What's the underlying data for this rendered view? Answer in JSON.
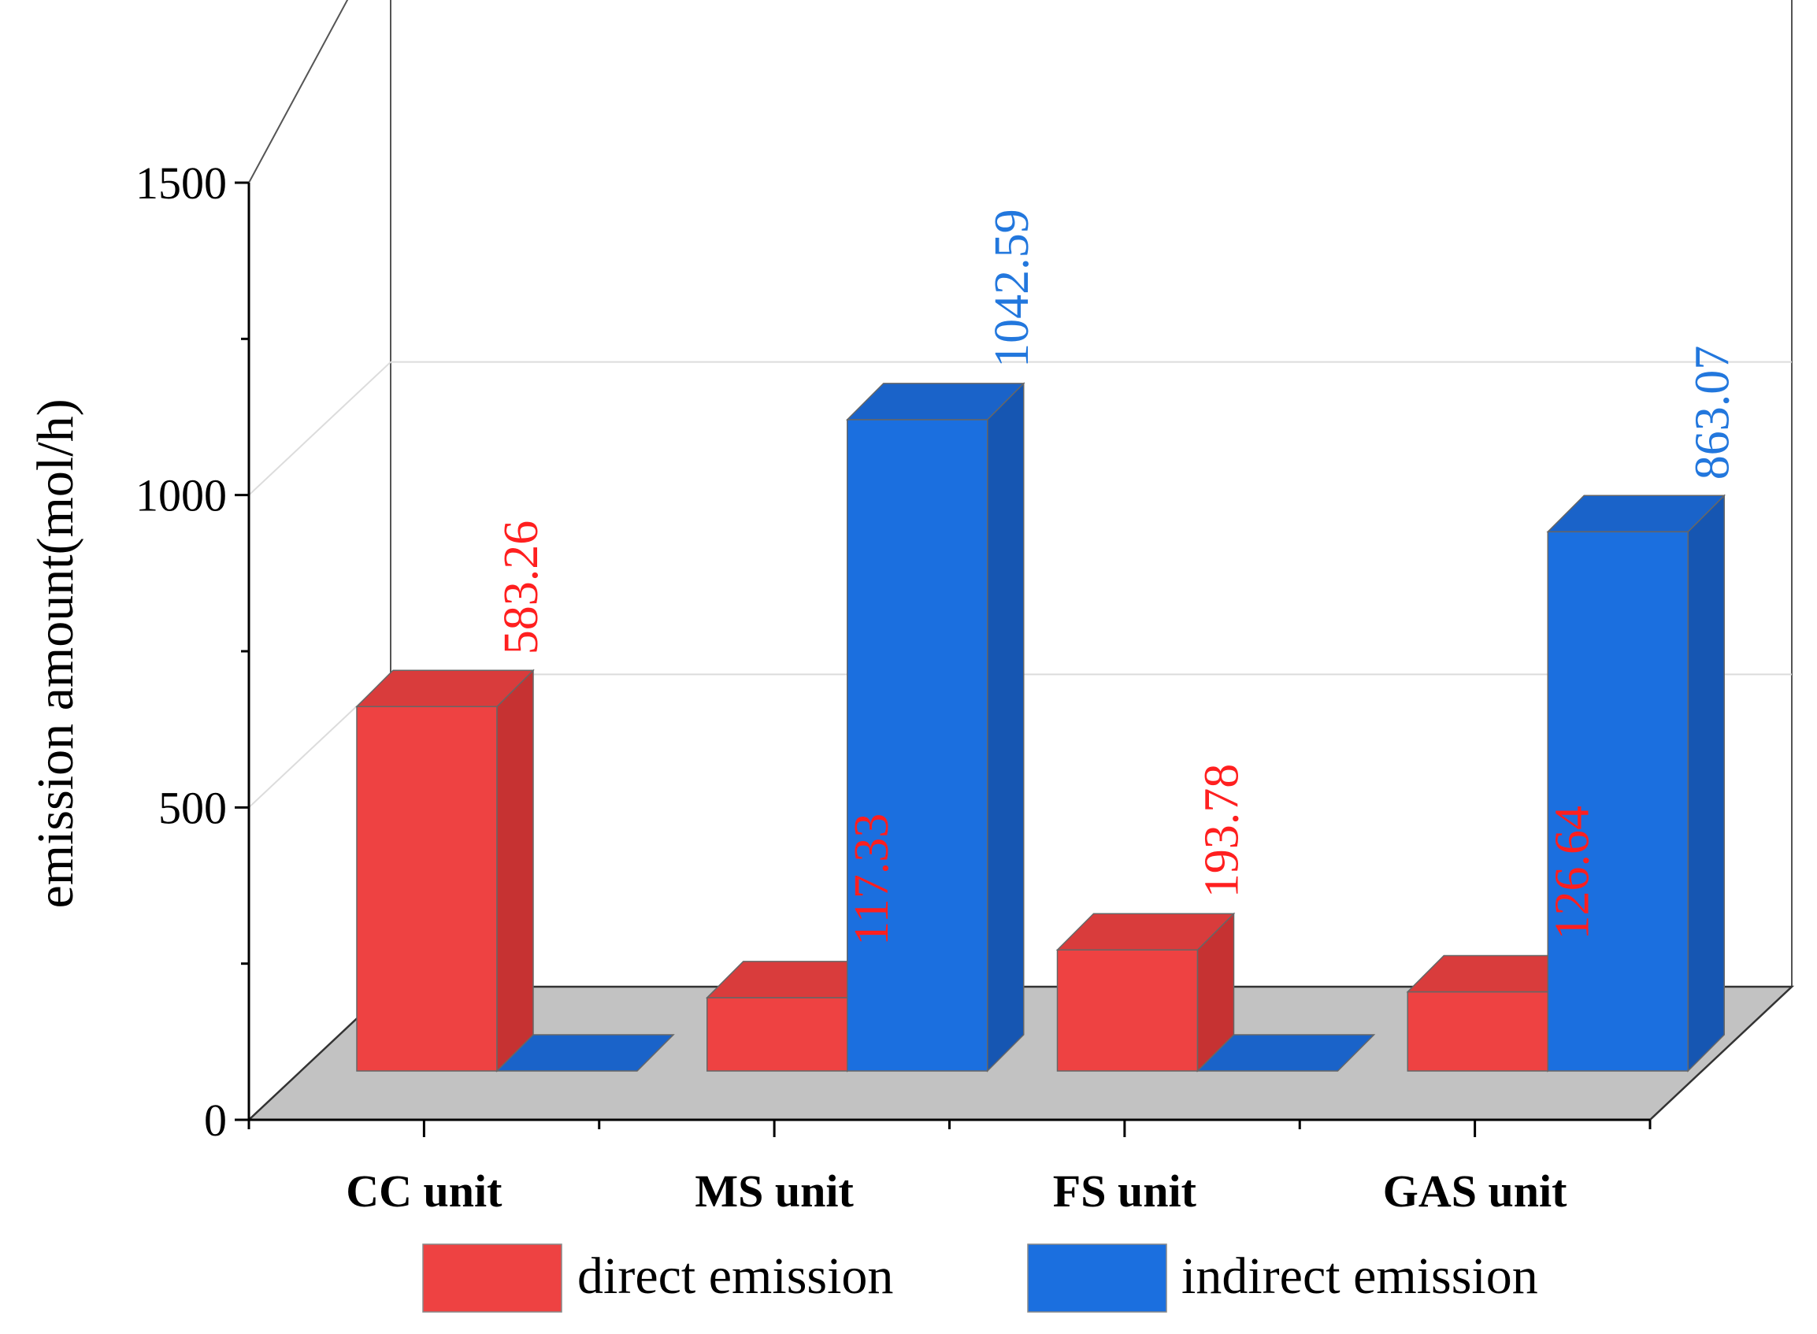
{
  "chart_data": {
    "type": "bar",
    "style": "3d-clustered",
    "title": "",
    "xlabel": "",
    "ylabel": "emission amount(mol/h)",
    "ylim": [
      0,
      1500
    ],
    "yticks": [
      0,
      500,
      1000,
      1500
    ],
    "yticks_labels": [
      "0",
      "500",
      "1000",
      "1500"
    ],
    "categories": [
      "CC unit",
      "MS unit",
      "FS unit",
      "GAS unit"
    ],
    "series": [
      {
        "name": "direct emission",
        "color": "#ee4242",
        "side_color": "#c63232",
        "top_color": "#d93c3c",
        "label_color": "#ff1f1f",
        "values": [
          583.26,
          117.33,
          193.78,
          126.64
        ],
        "labels": [
          "583.26",
          "117.33",
          "193.78",
          "126.64"
        ]
      },
      {
        "name": "indirect emission",
        "color": "#1b6fdf",
        "side_color": "#1656b2",
        "top_color": "#1a63c9",
        "label_color": "#2277dd",
        "values": [
          0,
          1042.59,
          0,
          863.07
        ],
        "labels": [
          "",
          "1042.59",
          "",
          "863.07"
        ]
      }
    ],
    "grid": true,
    "legend_position": "bottom"
  }
}
